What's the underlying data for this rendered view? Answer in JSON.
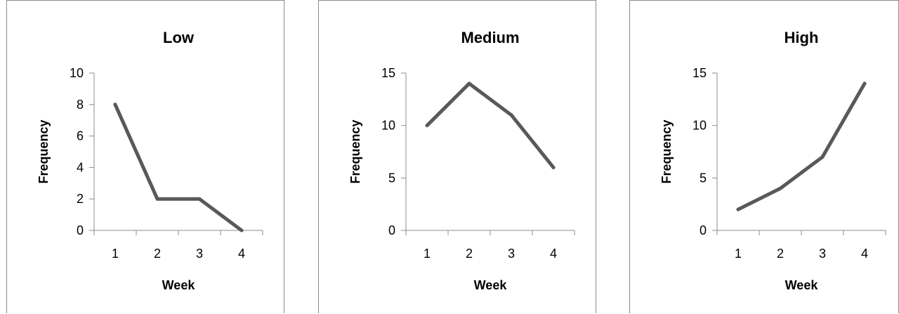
{
  "chart_data": [
    {
      "type": "line",
      "title": "Low",
      "xlabel": "Week",
      "ylabel": "Frequency",
      "categories": [
        "1",
        "2",
        "3",
        "4"
      ],
      "values": [
        8,
        2,
        2,
        0
      ],
      "ylim": [
        0,
        10
      ],
      "yticks": [
        0,
        2,
        4,
        6,
        8,
        10
      ],
      "grid": false,
      "legend": "none",
      "line_color": "#595959"
    },
    {
      "type": "line",
      "title": "Medium",
      "xlabel": "Week",
      "ylabel": "Frequency",
      "categories": [
        "1",
        "2",
        "3",
        "4"
      ],
      "values": [
        10,
        14,
        11,
        6
      ],
      "ylim": [
        0,
        15
      ],
      "yticks": [
        0,
        5,
        10,
        15
      ],
      "grid": false,
      "legend": "none",
      "line_color": "#595959"
    },
    {
      "type": "line",
      "title": "High",
      "xlabel": "Week",
      "ylabel": "Frequency",
      "categories": [
        "1",
        "2",
        "3",
        "4"
      ],
      "values": [
        2,
        4,
        7,
        14
      ],
      "ylim": [
        0,
        15
      ],
      "yticks": [
        0,
        5,
        10,
        15
      ],
      "grid": false,
      "legend": "none",
      "line_color": "#595959"
    }
  ]
}
